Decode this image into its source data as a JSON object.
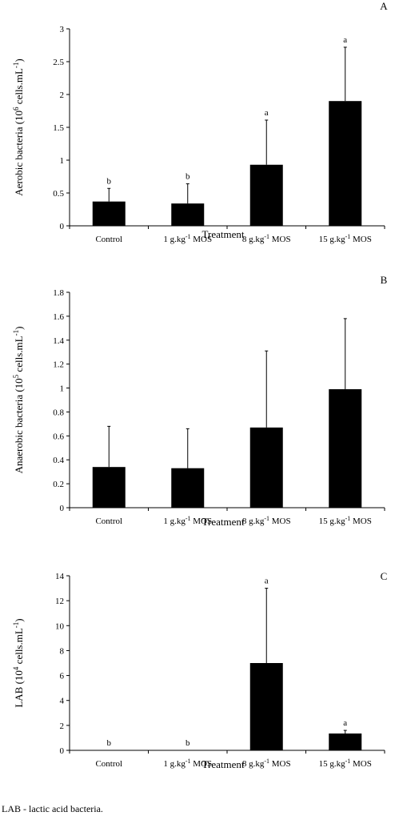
{
  "footnote": "LAB - lactic acid bacteria.",
  "chart_data": [
    {
      "type": "bar",
      "panel": "A",
      "ylabel_main": "Aerobic bacteria (10",
      "ylabel_sup": "6",
      "ylabel_mid": " cells.mL",
      "ylabel_sup2": "-1",
      "ylabel_end": ")",
      "xlabel": "Treatment",
      "categories": [
        {
          "main": "Control",
          "sup": "",
          "tail": ""
        },
        {
          "main": "1 g.kg",
          "sup": "-1",
          "tail": " MOS"
        },
        {
          "main": "8 g.kg",
          "sup": "-1",
          "tail": " MOS"
        },
        {
          "main": "15 g.kg",
          "sup": "-1",
          "tail": " MOS"
        }
      ],
      "values": [
        0.37,
        0.34,
        0.93,
        1.9
      ],
      "errors": [
        0.2,
        0.3,
        0.68,
        0.82
      ],
      "letters": [
        "b",
        "b",
        "a",
        "a"
      ],
      "ylim": [
        0,
        3
      ],
      "yticks": [
        "0",
        "0.5",
        "1",
        "1.5",
        "2",
        "2.5",
        "3"
      ]
    },
    {
      "type": "bar",
      "panel": "B",
      "ylabel_main": "Anaerobic bacteria (10",
      "ylabel_sup": "5",
      "ylabel_mid": " cells.mL",
      "ylabel_sup2": "-1",
      "ylabel_end": ")",
      "xlabel": "Treatment",
      "categories": [
        {
          "main": "Control",
          "sup": "",
          "tail": ""
        },
        {
          "main": "1 g.kg",
          "sup": "-1",
          "tail": " MOS"
        },
        {
          "main": "8 g.kg",
          "sup": "-1",
          "tail": " MOS"
        },
        {
          "main": "15 g.kg",
          "sup": "-1",
          "tail": " MOS"
        }
      ],
      "values": [
        0.34,
        0.33,
        0.67,
        0.99
      ],
      "errors": [
        0.34,
        0.33,
        0.64,
        0.59
      ],
      "letters": [
        "",
        "",
        "",
        ""
      ],
      "ylim": [
        0,
        1.8
      ],
      "yticks": [
        "0",
        "0.2",
        "0.4",
        "0.6",
        "0.8",
        "1",
        "1.2",
        "1.4",
        "1.6",
        "1.8"
      ]
    },
    {
      "type": "bar",
      "panel": "C",
      "ylabel_main": "LAB (10",
      "ylabel_sup": "4",
      "ylabel_mid": " cells.mL",
      "ylabel_sup2": "-1",
      "ylabel_end": ")",
      "xlabel": "Treatment",
      "categories": [
        {
          "main": "Control",
          "sup": "",
          "tail": ""
        },
        {
          "main": "1 g.kg",
          "sup": "-1",
          "tail": " MOS"
        },
        {
          "main": "8 g.kg",
          "sup": "-1",
          "tail": " MOS"
        },
        {
          "main": "15 g.kg",
          "sup": "-1",
          "tail": " MOS"
        }
      ],
      "values": [
        0,
        0,
        7.0,
        1.35
      ],
      "errors": [
        0,
        0,
        6.0,
        0.25
      ],
      "letters": [
        "b",
        "b",
        "a",
        "a"
      ],
      "ylim": [
        0,
        14
      ],
      "yticks": [
        "0",
        "2",
        "4",
        "6",
        "8",
        "10",
        "12",
        "14"
      ]
    }
  ]
}
